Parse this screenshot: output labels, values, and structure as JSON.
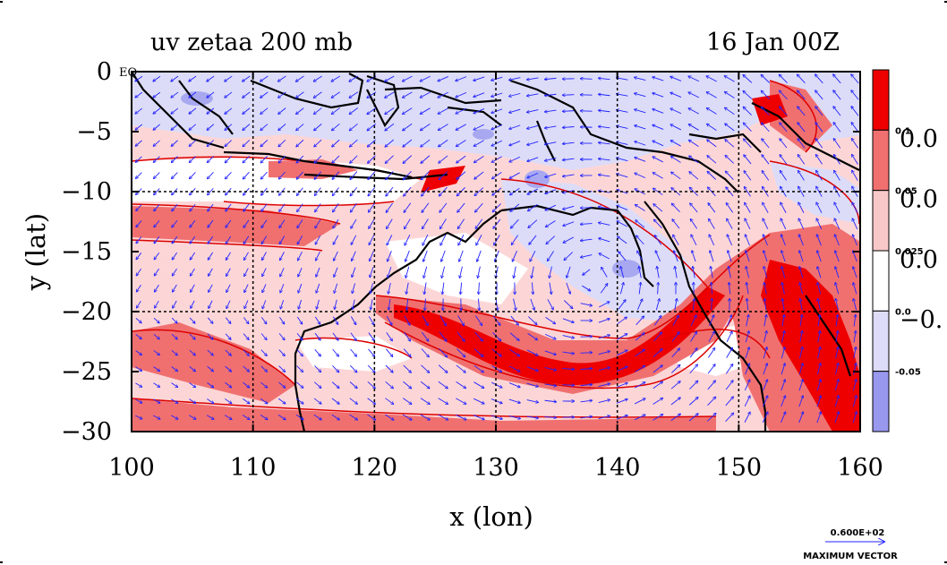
{
  "chart_data": {
    "type": "heatmap",
    "title": "uv zetaa 200 mb",
    "time_label": "16 Jan 00Z",
    "xlabel": "x (lon)",
    "ylabel": "y (lat)",
    "xlim": [
      100,
      160
    ],
    "ylim": [
      -30,
      0
    ],
    "x_ticks": [
      100,
      110,
      120,
      130,
      140,
      150,
      160
    ],
    "y_ticks": [
      {
        "value": 0,
        "label": "0"
      },
      {
        "value": -5,
        "label": "−5"
      },
      {
        "value": -10,
        "label": "−10"
      },
      {
        "value": -15,
        "label": "−15"
      },
      {
        "value": -20,
        "label": "−20"
      },
      {
        "value": -25,
        "label": "−25"
      },
      {
        "value": -30,
        "label": "−30"
      }
    ],
    "eq_label": "EQ",
    "grid": true,
    "grid_lon": [
      110,
      120,
      130,
      140,
      150
    ],
    "grid_lat": [
      -10,
      -20
    ],
    "colorbar": {
      "position": "right",
      "colors": [
        "#ee0000",
        "#f07070",
        "#f8c8c8",
        "#ffffff",
        "#dcdcf8",
        "#9898ee"
      ],
      "levels": [
        "0.1",
        "0.05",
        "0.025",
        "0.0",
        "-0.05"
      ],
      "big_labels": [
        "0.0",
        "0.0",
        "0.0",
        "−0."
      ]
    },
    "contour_color": "#dd0000",
    "coast_color": "#000000",
    "vector_color": "#2222ff",
    "max_vector": {
      "value": "0.600E+02",
      "label": "MAXIMUM VECTOR"
    }
  }
}
